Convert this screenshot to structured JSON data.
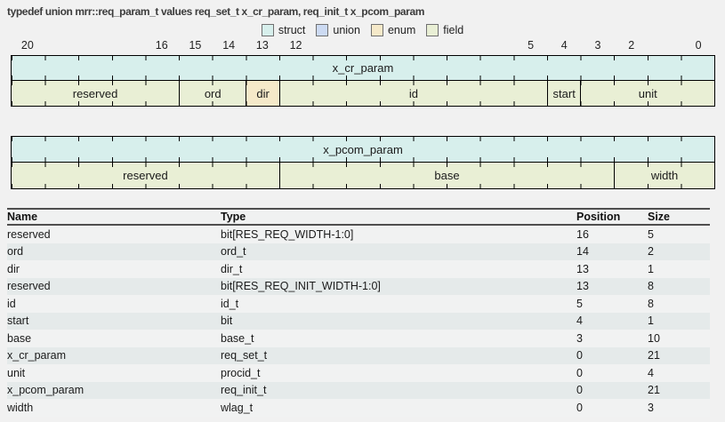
{
  "title": "typedef union mrr::req_param_t values req_set_t x_cr_param, req_init_t x_pcom_param",
  "legend": {
    "items": [
      {
        "label": "struct"
      },
      {
        "label": "union"
      },
      {
        "label": "enum"
      },
      {
        "label": "field"
      }
    ]
  },
  "colors": {
    "struct": "#d7efec",
    "union": "#ccdaf2",
    "enum": "#f5e9c9",
    "field": "#e9efd5",
    "row": "#f1f2f2",
    "row_alt": "#e5eaea",
    "table_border": "#4f4f4f"
  },
  "ruler": {
    "msb": 20,
    "lsb": 0,
    "bits": 21,
    "labels": [
      "20",
      "16",
      "15",
      "14",
      "13",
      "12",
      "5",
      "4",
      "3",
      "2",
      "0"
    ]
  },
  "diagrams": [
    {
      "name": "x_cr_param",
      "kind": "struct",
      "bits": 21,
      "fields": [
        {
          "label": "reserved",
          "size": 5,
          "kind": "field"
        },
        {
          "label": "ord",
          "size": 2,
          "kind": "field"
        },
        {
          "label": "dir",
          "size": 1,
          "kind": "enum"
        },
        {
          "label": "id",
          "size": 8,
          "kind": "field"
        },
        {
          "label": "start",
          "size": 1,
          "kind": "field"
        },
        {
          "label": "unit",
          "size": 4,
          "kind": "field"
        }
      ]
    },
    {
      "name": "x_pcom_param",
      "kind": "struct",
      "bits": 21,
      "fields": [
        {
          "label": "reserved",
          "size": 8,
          "kind": "field"
        },
        {
          "label": "base",
          "size": 10,
          "kind": "field"
        },
        {
          "label": "width",
          "size": 3,
          "kind": "field"
        }
      ]
    }
  ],
  "table": {
    "headers": [
      "Name",
      "Type",
      "Position",
      "Size"
    ],
    "rows": [
      [
        "reserved",
        "bit[RES_REQ_WIDTH-1:0]",
        "16",
        "5"
      ],
      [
        "ord",
        "ord_t",
        "14",
        "2"
      ],
      [
        "dir",
        "dir_t",
        "13",
        "1"
      ],
      [
        "reserved",
        "bit[RES_REQ_INIT_WIDTH-1:0]",
        "13",
        "8"
      ],
      [
        "id",
        "id_t",
        "5",
        "8"
      ],
      [
        "start",
        "bit",
        "4",
        "1"
      ],
      [
        "base",
        "base_t",
        "3",
        "10"
      ],
      [
        "x_cr_param",
        "req_set_t",
        "0",
        "21"
      ],
      [
        "unit",
        "procid_t",
        "0",
        "4"
      ],
      [
        "x_pcom_param",
        "req_init_t",
        "0",
        "21"
      ],
      [
        "width",
        "wlag_t",
        "0",
        "3"
      ]
    ]
  }
}
